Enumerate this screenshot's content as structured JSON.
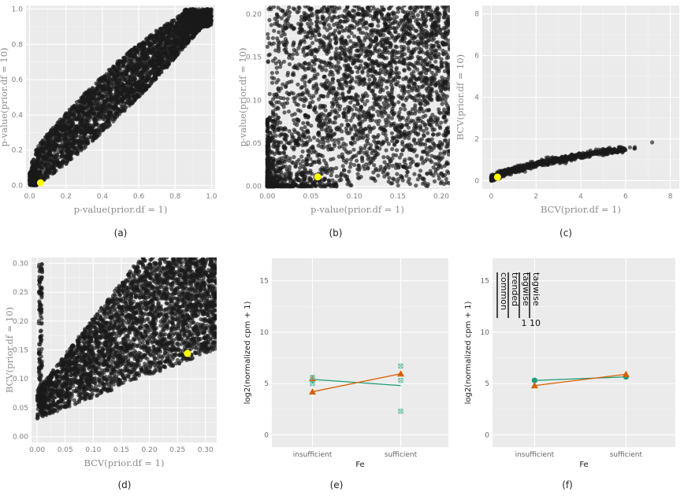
{
  "chart_data": [
    {
      "panel": "(a)",
      "type": "scatter",
      "xlabel": "p-value(prior.df = 1)",
      "ylabel": "p-value(prior.df = 10)",
      "xlim": [
        -0.02,
        1.02
      ],
      "ylim": [
        -0.02,
        1.02
      ],
      "xticks": [
        0,
        0.2,
        0.4,
        0.6,
        0.8,
        1.0
      ],
      "xticklabels": [
        "0.0",
        "0.2",
        "0.4",
        "0.6",
        "0.8",
        "1.0"
      ],
      "yticks": [
        0,
        0.2,
        0.4,
        0.6,
        0.8,
        1.0
      ],
      "yticklabels": [
        "0.0",
        "0.2",
        "0.4",
        "0.6",
        "0.8",
        "1.0"
      ],
      "point_color": "#1a1a1a",
      "description": "Dense cloud of tens of thousands of points along the diagonal from (0,0) to (1,1).",
      "cloud": {
        "lower": [
          [
            0,
            0
          ],
          [
            0.05,
            0.01
          ],
          [
            0.2,
            0.12
          ],
          [
            0.4,
            0.3
          ],
          [
            0.6,
            0.5
          ],
          [
            0.8,
            0.72
          ],
          [
            0.95,
            0.9
          ],
          [
            1.0,
            0.92
          ]
        ],
        "upper": [
          [
            0,
            0.05
          ],
          [
            0.02,
            0.18
          ],
          [
            0.1,
            0.3
          ],
          [
            0.3,
            0.52
          ],
          [
            0.5,
            0.72
          ],
          [
            0.7,
            0.88
          ],
          [
            0.85,
            0.98
          ],
          [
            1.0,
            1.0
          ]
        ]
      },
      "highlight": {
        "x": 0.06,
        "y": 0.015,
        "color": "#ffff00"
      }
    },
    {
      "panel": "(b)",
      "type": "scatter",
      "xlabel": "p-value(prior.df = 1)",
      "ylabel": "p-value(prior.df = 10)",
      "xlim": [
        -0.003,
        0.21
      ],
      "ylim": [
        -0.003,
        0.21
      ],
      "xticks": [
        0,
        0.05,
        0.1,
        0.15,
        0.2
      ],
      "xticklabels": [
        "0.00",
        "0.05",
        "0.10",
        "0.15",
        "0.20"
      ],
      "yticks": [
        0,
        0.05,
        0.1,
        0.15,
        0.2
      ],
      "yticklabels": [
        "0.00",
        "0.05",
        "0.10",
        "0.15",
        "0.20"
      ],
      "point_color": "#1a1a1a",
      "description": "Zoom near the origin: very dense near (0,0), sparser towards upper right.",
      "highlight": {
        "x": 0.058,
        "y": 0.011,
        "color": "#ffff00"
      }
    },
    {
      "panel": "(c)",
      "type": "scatter",
      "xlabel": "BCV(prior.df = 1)",
      "ylabel": "BCV(prior.df = 10)",
      "xlim": [
        -0.4,
        8.4
      ],
      "ylim": [
        -0.4,
        8.4
      ],
      "xticks": [
        0,
        2,
        4,
        6,
        8
      ],
      "xticklabels": [
        "0",
        "2",
        "4",
        "6",
        "8"
      ],
      "yticks": [
        0,
        2,
        4,
        6,
        8
      ],
      "yticklabels": [
        "0",
        "2",
        "4",
        "6",
        "8"
      ],
      "point_color": "#1a1a1a",
      "description": "Concave band rising from (0,0) to about (7.2,1.8).",
      "curve": [
        [
          0,
          0.1
        ],
        [
          0.5,
          0.35
        ],
        [
          1,
          0.5
        ],
        [
          2,
          0.78
        ],
        [
          3,
          1.0
        ],
        [
          4,
          1.2
        ],
        [
          5,
          1.37
        ],
        [
          6,
          1.5
        ],
        [
          7,
          1.68
        ],
        [
          7.2,
          1.85
        ]
      ],
      "highlight": {
        "x": 0.28,
        "y": 0.17,
        "color": "#ffff00"
      }
    },
    {
      "panel": "(d)",
      "type": "scatter",
      "xlabel": "BCV(prior.df = 1)",
      "ylabel": "BCV(prior.df = 10)",
      "xlim": [
        -0.01,
        0.32
      ],
      "ylim": [
        -0.01,
        0.31
      ],
      "xticks": [
        0,
        0.05,
        0.1,
        0.15,
        0.2,
        0.25,
        0.3
      ],
      "xticklabels": [
        "0.00",
        "0.05",
        "0.10",
        "0.15",
        "0.20",
        "0.25",
        "0.30"
      ],
      "yticks": [
        0,
        0.05,
        0.1,
        0.15,
        0.2,
        0.25,
        0.3
      ],
      "yticklabels": [
        "0.00",
        "0.05",
        "0.10",
        "0.15",
        "0.20",
        "0.25",
        "0.30"
      ],
      "point_color": "#1a1a1a",
      "description": "Dense wedge starting near (0,0.03) fanning upward; vertical spike near x≈0.",
      "highlight": {
        "x": 0.268,
        "y": 0.144,
        "color": "#ffff00"
      }
    },
    {
      "panel": "(e)",
      "type": "line",
      "xlabel": "Fe",
      "ylabel": "log2(normalized cpm + 1)",
      "categories": [
        "insufficient",
        "sufficient"
      ],
      "ylim": [
        -1.2,
        17.2
      ],
      "yticks": [
        0,
        5,
        10,
        15
      ],
      "yticklabels": [
        "0",
        "5",
        "10",
        "15"
      ],
      "series": [
        {
          "color": "#1b9e77",
          "values": [
            5.4,
            4.8
          ]
        },
        {
          "color": "#d95f02",
          "values": [
            4.2,
            5.95
          ]
        }
      ],
      "markers": [
        {
          "cat": 0,
          "y": 5.3,
          "shape": "circle",
          "color": "#1b9e77"
        },
        {
          "cat": 0,
          "y": 4.2,
          "shape": "triangle",
          "color": "#d95f02"
        },
        {
          "cat": 0,
          "y": 5.5,
          "shape": "triangle",
          "color": "#d95f02"
        },
        {
          "cat": 1,
          "y": 5.95,
          "shape": "triangle",
          "color": "#d95f02"
        },
        {
          "cat": 0,
          "y": 5.6,
          "shape": "boxx",
          "color": "#66c2a5"
        },
        {
          "cat": 0,
          "y": 5.0,
          "shape": "boxx",
          "color": "#66c2a5"
        },
        {
          "cat": 1,
          "y": 6.7,
          "shape": "boxx",
          "color": "#66c2a5"
        },
        {
          "cat": 1,
          "y": 5.3,
          "shape": "boxx",
          "color": "#66c2a5"
        },
        {
          "cat": 1,
          "y": 2.3,
          "shape": "boxx",
          "color": "#66c2a5"
        }
      ]
    },
    {
      "panel": "(f)",
      "type": "line",
      "xlabel": "Fe",
      "ylabel": "log2(normalized cpm + 1)",
      "categories": [
        "insufficient",
        "sufficient"
      ],
      "ylim": [
        -1.2,
        17.2
      ],
      "yticks": [
        0,
        5,
        10,
        15
      ],
      "yticklabels": [
        "0",
        "5",
        "10",
        "15"
      ],
      "series": [
        {
          "color": "#1b9e77",
          "values": [
            5.3,
            5.65
          ]
        },
        {
          "color": "#d95f02",
          "values": [
            4.8,
            5.9
          ]
        }
      ],
      "markers": [
        {
          "cat": 0,
          "y": 5.3,
          "shape": "circle",
          "color": "#1b9e77"
        },
        {
          "cat": 1,
          "y": 5.65,
          "shape": "circle",
          "color": "#1b9e77"
        },
        {
          "cat": 0,
          "y": 4.8,
          "shape": "triangle",
          "color": "#d95f02"
        },
        {
          "cat": 1,
          "y": 5.9,
          "shape": "triangle",
          "color": "#d95f02"
        }
      ],
      "legend_rotated": [
        "common",
        "trended",
        "tagwise",
        "tagwise"
      ],
      "legend_numbers": [
        "1",
        "10"
      ]
    }
  ],
  "panel_labels": [
    "(a)",
    "(b)",
    "(c)",
    "(d)",
    "(e)",
    "(f)"
  ]
}
